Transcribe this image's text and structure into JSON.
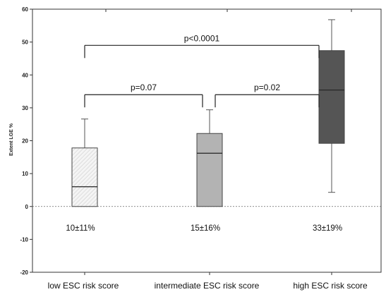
{
  "chart_data": {
    "type": "box",
    "ylabel": "Extent LGE %",
    "ylim": [
      -20,
      60
    ],
    "yticks": [
      -20,
      -10,
      0,
      10,
      20,
      30,
      40,
      50,
      60
    ],
    "reference_line": 0,
    "categories": [
      "low ESC risk score",
      "intermediate ESC risk score",
      "high ESC risk score"
    ],
    "boxes": [
      {
        "category": "low ESC risk score",
        "min": 0,
        "q1": 0,
        "median": 6,
        "q3": 17.8,
        "max": 26.6,
        "fill": "#f2f2f2",
        "hatch": true,
        "mean_label": "10±11%"
      },
      {
        "category": "intermediate ESC risk score",
        "min": 0,
        "q1": 0,
        "median": 16.2,
        "q3": 22.2,
        "max": 29.4,
        "fill": "#b3b3b3",
        "hatch": false,
        "mean_label": "15±16%"
      },
      {
        "category": "high ESC risk score",
        "min": 4.3,
        "q1": 19.2,
        "median": 35.4,
        "q3": 47.4,
        "max": 56.8,
        "fill": "#555555",
        "hatch": false,
        "mean_label": "33±19%"
      }
    ],
    "comparisons": [
      {
        "from": 0,
        "to": 2,
        "y": 49,
        "label": "p<0.0001"
      },
      {
        "from": 0,
        "to": 1,
        "y": 34,
        "label": "p=0.07"
      },
      {
        "from": 1,
        "to": 2,
        "y": 34,
        "label": "p=0.02"
      }
    ]
  }
}
